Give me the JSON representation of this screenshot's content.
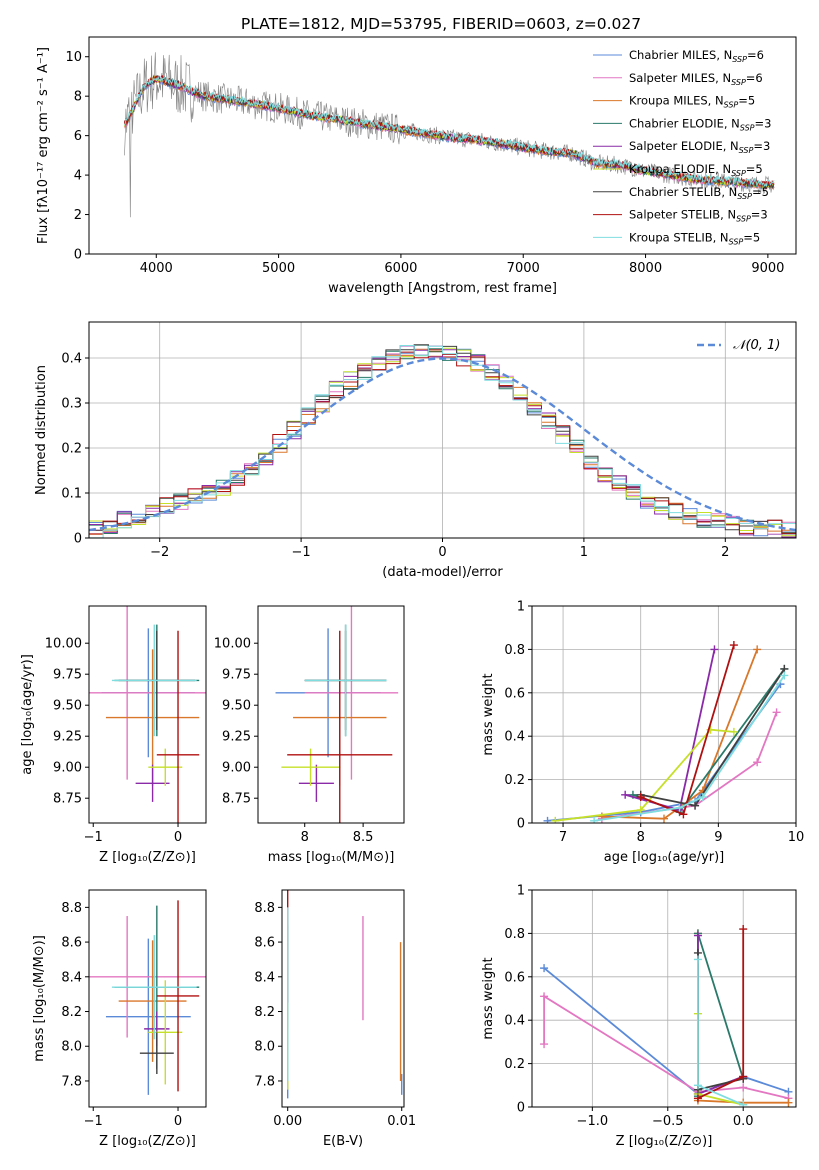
{
  "figure": {
    "title": "PLATE=1812, MJD=53795, FIBERID=0603, z=0.027"
  },
  "colors": {
    "data_spectrum": "#808080",
    "grid": "#b0b0b0",
    "normal_curve": "#5b8ad8"
  },
  "chart_data": [
    {
      "id": "spectrum",
      "type": "line",
      "xlabel": "wavelength [Angstrom, rest frame]",
      "ylabel": "Flux [fλ10⁻¹⁷ erg cm⁻² s⁻¹ A⁻¹]",
      "xlim": [
        3450,
        9230
      ],
      "ylim": [
        0,
        11
      ],
      "xticks": [
        4000,
        5000,
        6000,
        7000,
        8000,
        9000
      ],
      "yticks": [
        0,
        2,
        4,
        6,
        8,
        10
      ],
      "grid": false,
      "legend_position": "top-right",
      "continuum": {
        "x": [
          3750,
          3900,
          4000,
          4100,
          4200,
          4300,
          4400,
          4600,
          4800,
          5000,
          5200,
          5400,
          5600,
          5800,
          6000,
          6200,
          6400,
          6600,
          6800,
          7000,
          7200,
          7400,
          7600,
          7800,
          8000,
          8200,
          8400,
          8600,
          8800,
          9000
        ],
        "y": [
          6.6,
          8.5,
          8.9,
          8.7,
          8.5,
          8.2,
          8.0,
          7.8,
          7.6,
          7.4,
          7.1,
          6.9,
          6.7,
          6.5,
          6.3,
          6.1,
          5.9,
          5.8,
          5.6,
          5.4,
          5.2,
          5.1,
          4.6,
          4.5,
          4.2,
          4.0,
          3.8,
          3.7,
          3.6,
          3.5
        ]
      },
      "series": [
        {
          "name": "Chabrier MILES",
          "nssp": "6",
          "color": "#5b8ad8"
        },
        {
          "name": "Salpeter MILES",
          "nssp": "6",
          "color": "#e377c2"
        },
        {
          "name": "Kroupa MILES",
          "nssp": "5",
          "color": "#d9772a"
        },
        {
          "name": "Chabrier ELODIE",
          "nssp": "3",
          "color": "#2a7a6a"
        },
        {
          "name": "Salpeter ELODIE",
          "nssp": "3",
          "color": "#8a2aa8"
        },
        {
          "name": "Kroupa ELODIE",
          "nssp": "5",
          "color": "#c6e02a"
        },
        {
          "name": "Chabrier STELIB",
          "nssp": "5",
          "color": "#404040"
        },
        {
          "name": "Salpeter STELIB",
          "nssp": "3",
          "color": "#b01010"
        },
        {
          "name": "Kroupa STELIB",
          "nssp": "5",
          "color": "#7fdde0"
        }
      ]
    },
    {
      "id": "residuals",
      "type": "bar",
      "xlabel": "(data-model)/error",
      "ylabel": "Normed distribution",
      "xlim": [
        -2.5,
        2.5
      ],
      "ylim": [
        0,
        0.48
      ],
      "xticks": [
        -2,
        -1,
        0,
        1,
        2
      ],
      "yticks": [
        0.0,
        0.1,
        0.2,
        0.3,
        0.4
      ],
      "grid": true,
      "legend_position": "top-right",
      "normal_label": "𝒩(0, 1)",
      "bin_edges_from": -2.5,
      "bin_width": 0.1,
      "histogram": [
        0.02,
        0.03,
        0.04,
        0.05,
        0.06,
        0.07,
        0.08,
        0.09,
        0.1,
        0.11,
        0.13,
        0.15,
        0.18,
        0.21,
        0.24,
        0.27,
        0.3,
        0.33,
        0.35,
        0.37,
        0.39,
        0.4,
        0.41,
        0.42,
        0.42,
        0.41,
        0.4,
        0.39,
        0.37,
        0.35,
        0.32,
        0.29,
        0.26,
        0.23,
        0.2,
        0.17,
        0.14,
        0.12,
        0.1,
        0.08,
        0.07,
        0.06,
        0.05,
        0.04,
        0.035,
        0.03,
        0.025,
        0.02,
        0.02,
        0.02
      ]
    },
    {
      "id": "age-vs-Z",
      "type": "scatter",
      "xlabel": "Z [log₁₀(Z/Z⊙)]",
      "ylabel": "age  [log₁₀(age/yr)]",
      "xlim": [
        -1.05,
        0.33
      ],
      "ylim": [
        8.55,
        10.3
      ],
      "xticks": [
        -1,
        0
      ],
      "yticks": [
        8.75,
        9.0,
        9.25,
        9.5,
        9.75,
        10.0
      ],
      "ytick_labels": [
        "8.75",
        "9.00",
        "9.25",
        "9.50",
        "9.75",
        "10.00"
      ],
      "points": [
        {
          "color": "#5b8ad8",
          "x": -0.35,
          "y": 9.6,
          "xerr": 0.55,
          "yerr": 0.52
        },
        {
          "color": "#e377c2",
          "x": -0.6,
          "y": 9.6,
          "xerr": 0.95,
          "yerr": 0.7
        },
        {
          "color": "#d9772a",
          "x": -0.3,
          "y": 9.4,
          "xerr": 0.55,
          "yerr": 0.55
        },
        {
          "color": "#2a7a6a",
          "x": -0.25,
          "y": 9.7,
          "xerr": 0.5,
          "yerr": 0.45
        },
        {
          "color": "#8a2aa8",
          "x": -0.3,
          "y": 8.87,
          "xerr": 0.2,
          "yerr": 0.15
        },
        {
          "color": "#c6e02a",
          "x": -0.15,
          "y": 9.0,
          "xerr": 0.2,
          "yerr": 0.15
        },
        {
          "color": "#404040",
          "x": -0.25,
          "y": 9.7,
          "xerr": 0.45,
          "yerr": 0.4
        },
        {
          "color": "#b01010",
          "x": 0.0,
          "y": 9.1,
          "xerr": 0.25,
          "yerr": 1.0
        },
        {
          "color": "#7fdde0",
          "x": -0.28,
          "y": 9.7,
          "xerr": 0.5,
          "yerr": 0.45
        }
      ]
    },
    {
      "id": "age-vs-mass",
      "type": "scatter",
      "xlabel": "mass [log₁₀(M/M⊙)]",
      "ylabel": "",
      "xlim": [
        7.6,
        8.85
      ],
      "ylim": [
        8.55,
        10.3
      ],
      "xticks": [
        8.0,
        8.5
      ],
      "yticks": [
        8.75,
        9.0,
        9.25,
        9.5,
        9.75,
        10.0
      ],
      "ytick_labels": [
        "8.75",
        "9.00",
        "9.25",
        "9.50",
        "9.75",
        "10.00"
      ],
      "points": [
        {
          "color": "#5b8ad8",
          "x": 8.2,
          "y": 9.6,
          "xerr": 0.45,
          "yerr": 0.52
        },
        {
          "color": "#e377c2",
          "x": 8.4,
          "y": 9.6,
          "xerr": 0.4,
          "yerr": 0.7
        },
        {
          "color": "#d9772a",
          "x": 8.3,
          "y": 9.4,
          "xerr": 0.4,
          "yerr": 0.55
        },
        {
          "color": "#2a7a6a",
          "x": 8.35,
          "y": 9.7,
          "xerr": 0.35,
          "yerr": 0.45
        },
        {
          "color": "#8a2aa8",
          "x": 8.1,
          "y": 8.87,
          "xerr": 0.15,
          "yerr": 0.15
        },
        {
          "color": "#c6e02a",
          "x": 8.05,
          "y": 9.0,
          "xerr": 0.25,
          "yerr": 0.15
        },
        {
          "color": "#404040",
          "x": 8.35,
          "y": 9.7,
          "xerr": 0.35,
          "yerr": 0.4
        },
        {
          "color": "#b01010",
          "x": 8.3,
          "y": 9.1,
          "xerr": 0.45,
          "yerr": 1.0
        },
        {
          "color": "#7fdde0",
          "x": 8.35,
          "y": 9.7,
          "xerr": 0.35,
          "yerr": 0.45
        }
      ]
    },
    {
      "id": "weight-vs-age",
      "type": "line",
      "xlabel": "age  [log₁₀(age/yr)]",
      "ylabel": "mass weight",
      "xlim": [
        6.6,
        10.0
      ],
      "ylim": [
        0,
        1.0
      ],
      "xticks": [
        7,
        8,
        9,
        10
      ],
      "yticks": [
        0.0,
        0.2,
        0.4,
        0.6,
        0.8,
        1.0
      ],
      "grid": true,
      "series": [
        {
          "color": "#5b8ad8",
          "x": [
            6.8,
            8.0,
            8.7,
            9.8
          ],
          "y": [
            0.01,
            0.05,
            0.1,
            0.64
          ]
        },
        {
          "color": "#e377c2",
          "x": [
            7.5,
            8.7,
            9.5,
            9.75
          ],
          "y": [
            0.02,
            0.08,
            0.28,
            0.51
          ]
        },
        {
          "color": "#d9772a",
          "x": [
            7.5,
            8.3,
            8.8,
            9.5
          ],
          "y": [
            0.03,
            0.02,
            0.15,
            0.8
          ]
        },
        {
          "color": "#2a7a6a",
          "x": [
            7.9,
            8.5,
            9.85
          ],
          "y": [
            0.13,
            0.05,
            0.71
          ]
        },
        {
          "color": "#8a2aa8",
          "x": [
            7.8,
            8.5,
            8.95
          ],
          "y": [
            0.13,
            0.06,
            0.8
          ]
        },
        {
          "color": "#c6e02a",
          "x": [
            6.9,
            8.0,
            8.9,
            9.2
          ],
          "y": [
            0.01,
            0.06,
            0.43,
            0.42
          ]
        },
        {
          "color": "#404040",
          "x": [
            8.0,
            8.7,
            9.85
          ],
          "y": [
            0.13,
            0.08,
            0.71
          ]
        },
        {
          "color": "#b01010",
          "x": [
            8.0,
            8.55,
            9.2
          ],
          "y": [
            0.12,
            0.04,
            0.82
          ]
        },
        {
          "color": "#7fdde0",
          "x": [
            7.4,
            8.5,
            8.8,
            9.85
          ],
          "y": [
            0.01,
            0.07,
            0.12,
            0.68
          ]
        }
      ]
    },
    {
      "id": "mass-vs-Z",
      "type": "scatter",
      "xlabel": "Z [log₁₀(Z/Z⊙)]",
      "ylabel": "mass [log₁₀(M/M⊙)]",
      "xlim": [
        -1.05,
        0.33
      ],
      "ylim": [
        7.65,
        8.9
      ],
      "xticks": [
        -1,
        0
      ],
      "yticks": [
        7.8,
        8.0,
        8.2,
        8.4,
        8.6,
        8.8
      ],
      "ytick_labels": [
        "7.8",
        "8.0",
        "8.2",
        "8.4",
        "8.6",
        "8.8"
      ],
      "points": [
        {
          "color": "#5b8ad8",
          "x": -0.35,
          "y": 8.17,
          "xerr": 0.5,
          "yerr": 0.45
        },
        {
          "color": "#e377c2",
          "x": -0.6,
          "y": 8.4,
          "xerr": 0.95,
          "yerr": 0.35
        },
        {
          "color": "#d9772a",
          "x": -0.3,
          "y": 8.26,
          "xerr": 0.4,
          "yerr": 0.35
        },
        {
          "color": "#2a7a6a",
          "x": -0.25,
          "y": 8.34,
          "xerr": 0.5,
          "yerr": 0.47
        },
        {
          "color": "#8a2aa8",
          "x": -0.25,
          "y": 8.1,
          "xerr": 0.15,
          "yerr": 0.1
        },
        {
          "color": "#c6e02a",
          "x": -0.15,
          "y": 8.08,
          "xerr": 0.2,
          "yerr": 0.3
        },
        {
          "color": "#404040",
          "x": -0.25,
          "y": 7.96,
          "xerr": 0.2,
          "yerr": 0.12
        },
        {
          "color": "#b01010",
          "x": 0.0,
          "y": 8.29,
          "xerr": 0.25,
          "yerr": 0.55
        },
        {
          "color": "#7fdde0",
          "x": -0.28,
          "y": 8.34,
          "xerr": 0.5,
          "yerr": 0.3
        }
      ]
    },
    {
      "id": "mass-vs-EBV",
      "type": "scatter",
      "xlabel": "E(B-V)",
      "ylabel": "",
      "xlim": [
        -0.0005,
        0.0102
      ],
      "ylim": [
        7.65,
        8.9
      ],
      "xticks": [
        0.0,
        0.01
      ],
      "xtick_labels": [
        "0.00",
        "0.01"
      ],
      "yticks": [
        7.8,
        8.0,
        8.2,
        8.4,
        8.6,
        8.8
      ],
      "ytick_labels": [
        "7.8",
        "8.0",
        "8.2",
        "8.4",
        "8.6",
        "8.8"
      ],
      "points": [
        {
          "color": "#5b8ad8",
          "x": 0.0,
          "y": 8.2,
          "yerr": 0.5
        },
        {
          "color": "#e377c2",
          "x": 0.0066,
          "y": 8.45,
          "yerr": 0.3
        },
        {
          "color": "#d9772a",
          "x": 0.0099,
          "y": 8.2,
          "yerr": 0.4
        },
        {
          "color": "#b01010",
          "x": 0.0,
          "y": 8.5,
          "yerr": 0.4
        },
        {
          "color": "#c6e02a",
          "x": 0.0,
          "y": 8.0,
          "yerr": 0.25
        },
        {
          "color": "#7fdde0",
          "x": 0.0,
          "y": 8.3,
          "yerr": 0.5
        },
        {
          "color": "#5b8ad8",
          "x": 0.01,
          "y": 7.78,
          "yerr": 0.06
        }
      ]
    },
    {
      "id": "weight-vs-Z",
      "type": "line",
      "xlabel": "Z [log₁₀(Z/Z⊙)]",
      "ylabel": "mass weight",
      "xlim": [
        -1.4,
        0.35
      ],
      "ylim": [
        0,
        1.0
      ],
      "xticks": [
        -1.0,
        -0.5,
        0.0
      ],
      "xtick_labels": [
        "−1.0",
        "−0.5",
        "0.0"
      ],
      "yticks": [
        0.0,
        0.2,
        0.4,
        0.6,
        0.8,
        1.0
      ],
      "grid": true,
      "series": [
        {
          "color": "#5b8ad8",
          "x": [
            -1.32,
            -0.3,
            0.0,
            0.3
          ],
          "y": [
            0.64,
            0.06,
            0.14,
            0.07
          ]
        },
        {
          "color": "#e377c2",
          "x": [
            -1.32,
            -1.32,
            -0.3,
            0.0,
            0.3
          ],
          "y": [
            0.29,
            0.51,
            0.07,
            0.09,
            0.04
          ]
        },
        {
          "color": "#d9772a",
          "x": [
            -0.3,
            -0.3,
            0.0,
            0.3
          ],
          "y": [
            0.8,
            0.03,
            0.02,
            0.02
          ]
        },
        {
          "color": "#2a7a6a",
          "x": [
            -0.3,
            -0.3,
            0.0
          ],
          "y": [
            0.05,
            0.8,
            0.13
          ]
        },
        {
          "color": "#8a2aa8",
          "x": [
            -0.3,
            -0.3,
            0.0
          ],
          "y": [
            0.79,
            0.06,
            0.14
          ]
        },
        {
          "color": "#c6e02a",
          "x": [
            -0.3,
            -0.3,
            0.0
          ],
          "y": [
            0.43,
            0.06,
            0.01
          ]
        },
        {
          "color": "#404040",
          "x": [
            -0.3,
            -0.3,
            0.0
          ],
          "y": [
            0.71,
            0.08,
            0.13
          ]
        },
        {
          "color": "#b01010",
          "x": [
            -0.3,
            0.0,
            0.0
          ],
          "y": [
            0.04,
            0.14,
            0.82
          ]
        },
        {
          "color": "#7fdde0",
          "x": [
            -0.3,
            -0.3,
            0.0
          ],
          "y": [
            0.68,
            0.1,
            0.01
          ]
        }
      ]
    }
  ]
}
